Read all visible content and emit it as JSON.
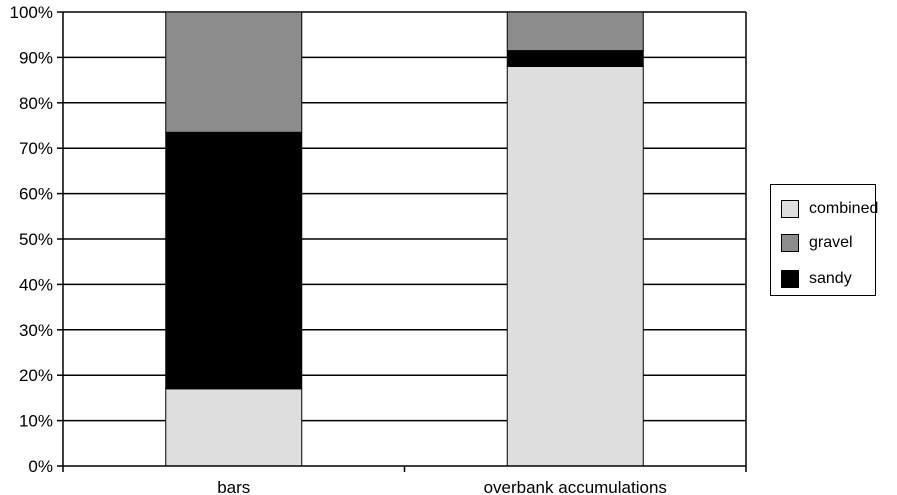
{
  "chart_data": {
    "type": "bar",
    "stacked": true,
    "categories": [
      "bars",
      "overbank accumulations"
    ],
    "series": [
      {
        "name": "combined",
        "color": "#dedede",
        "values": [
          17,
          88
        ]
      },
      {
        "name": "sandy",
        "color": "#000000",
        "values": [
          56.5,
          3.5
        ]
      },
      {
        "name": "gravel",
        "color": "#8c8c8c",
        "values": [
          26.5,
          8.5
        ]
      }
    ],
    "yticks": [
      "0%",
      "10%",
      "20%",
      "30%",
      "40%",
      "50%",
      "60%",
      "70%",
      "80%",
      "90%",
      "100%"
    ],
    "ylim": [
      0,
      100
    ],
    "grid": true,
    "legend_position": "right",
    "legend_order": [
      "combined",
      "gravel",
      "sandy"
    ]
  }
}
